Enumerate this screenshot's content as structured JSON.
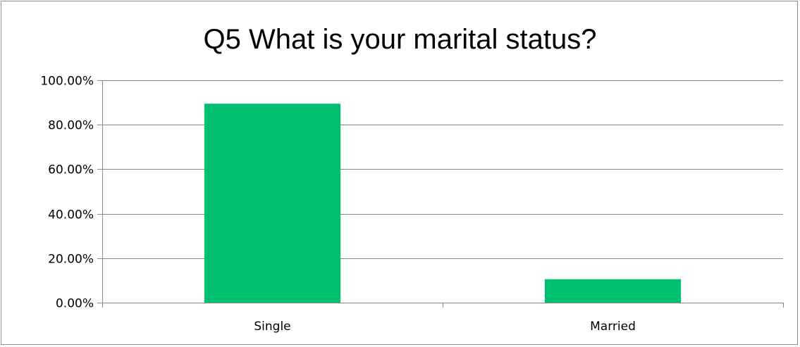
{
  "chart_data": {
    "type": "bar",
    "title": "Q5 What is your marital status?",
    "categories": [
      "Single",
      "Married"
    ],
    "values": [
      89.47,
      10.53
    ],
    "ylim": [
      0,
      100
    ],
    "yticks": [
      0,
      20,
      40,
      60,
      80,
      100
    ],
    "ytick_labels": [
      "0.00%",
      "20.00%",
      "40.00%",
      "60.00%",
      "80.00%",
      "100.00%"
    ],
    "grid": true,
    "legend": "none",
    "colors": {
      "bar": "#00C070",
      "gridline": "#878787",
      "axis": "#878787"
    }
  }
}
